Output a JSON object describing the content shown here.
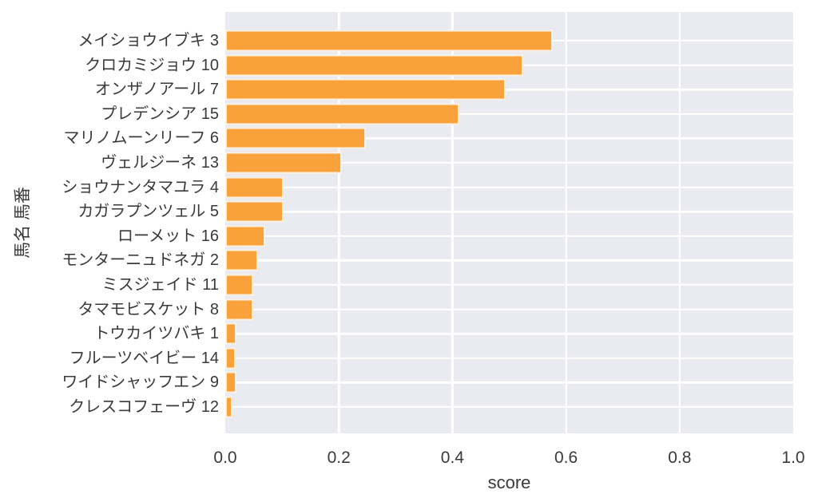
{
  "chart_data": {
    "type": "bar",
    "orientation": "horizontal",
    "title": "",
    "xlabel": "score",
    "ylabel": "馬名 馬番",
    "xlim": [
      0.0,
      1.0
    ],
    "xticks": [
      0.0,
      0.2,
      0.4,
      0.6,
      0.8,
      1.0
    ],
    "xtick_labels": [
      "0.0",
      "0.2",
      "0.4",
      "0.6",
      "0.8",
      "1.0"
    ],
    "grid": "on",
    "legend": "none",
    "categories": [
      "メイショウイブキ 3",
      "クロカミジョウ 10",
      "オンザノアール 7",
      "プレデンシア 15",
      "マリノムーンリーフ 6",
      "ヴェルジーネ 13",
      "ショウナンタマユラ 4",
      "カガラプンツェル 5",
      "ローメット 16",
      "モンターニュドネガ 2",
      "ミスジェイド 11",
      "タマモビスケット 8",
      "トウカイツバキ 1",
      "フルーツベイビー 14",
      "ワイドシャッフエン 9",
      "クレスコフェーヴ 12"
    ],
    "values": [
      0.577,
      0.525,
      0.493,
      0.412,
      0.247,
      0.206,
      0.103,
      0.103,
      0.07,
      0.057,
      0.049,
      0.049,
      0.019,
      0.018,
      0.019,
      0.012
    ],
    "colors": {
      "bar": "#F9A23C",
      "plot_background": "#EAEAF1",
      "gridline": "#FFFFFF",
      "text": "#3A3A3A",
      "figure_background": "#FFFFFF"
    }
  }
}
